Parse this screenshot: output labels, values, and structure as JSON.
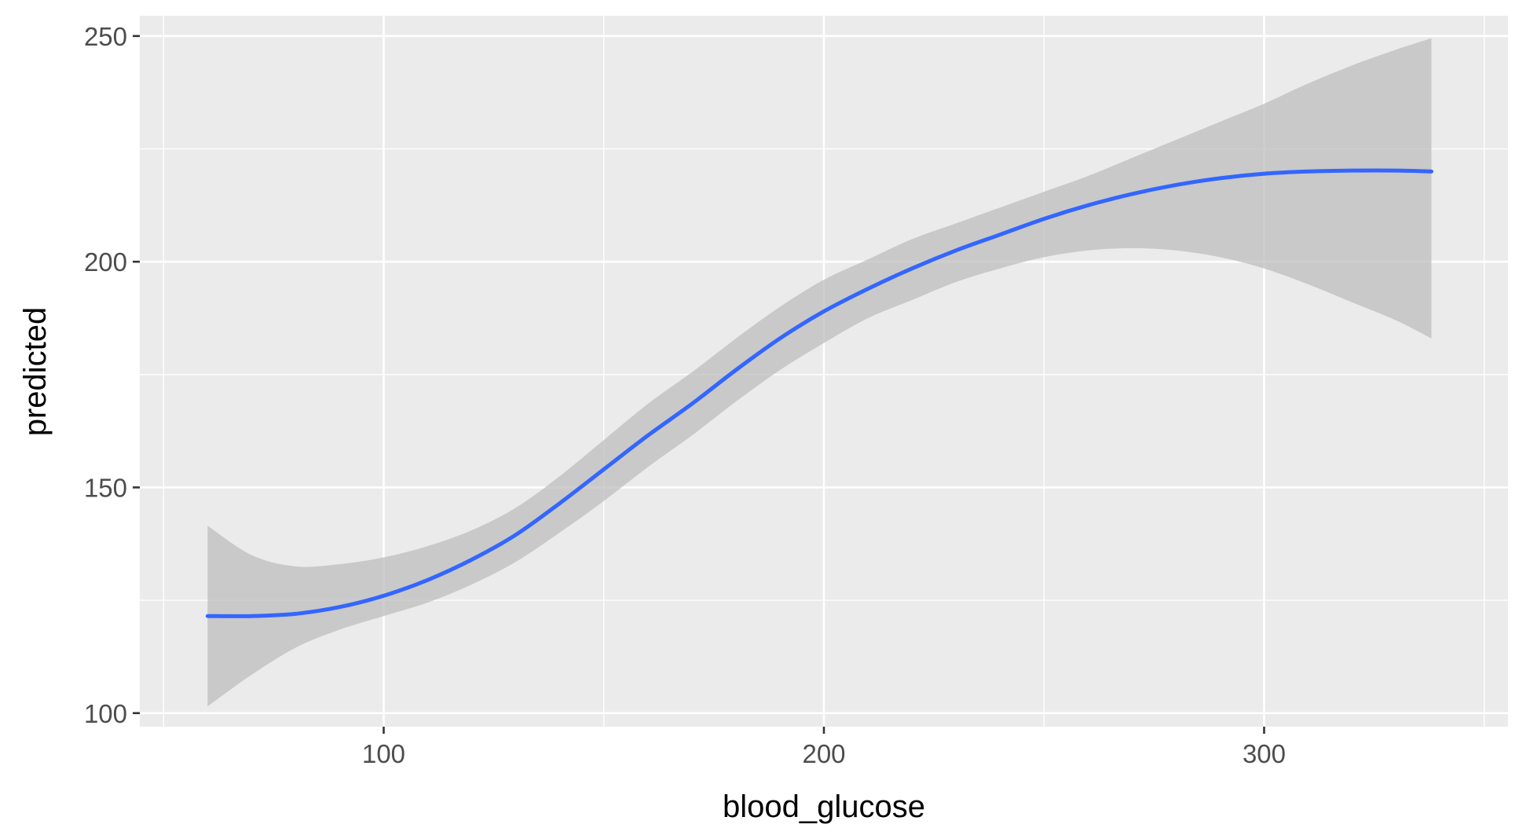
{
  "chart_data": {
    "type": "line",
    "title": "",
    "xlabel": "blood_glucose",
    "ylabel": "predicted",
    "xlim": [
      44.6,
      355.4
    ],
    "ylim": [
      97,
      254.5
    ],
    "x_ticks": [
      100,
      200,
      300
    ],
    "y_ticks": [
      100,
      150,
      200,
      250
    ],
    "grid": true,
    "legend": "none",
    "colors": {
      "panel_background": "#ebebeb",
      "grid": "#ffffff",
      "line": "#3366ff",
      "ribbon": "#bdbdbd",
      "tick_text": "#4d4d4d",
      "axis_title": "#000000"
    },
    "series": [
      {
        "x": [
          60,
          70,
          80,
          90,
          100,
          110,
          120,
          130,
          140,
          150,
          160,
          170,
          180,
          190,
          200,
          210,
          220,
          230,
          240,
          250,
          260,
          270,
          280,
          290,
          300,
          310,
          320,
          330,
          338
        ],
        "y": [
          121.5,
          121.5,
          122,
          123.5,
          126,
          129.5,
          134,
          139.5,
          146.5,
          154,
          161.5,
          168.5,
          176,
          183,
          189,
          194,
          198.5,
          202.5,
          206,
          209.5,
          212.5,
          215,
          217,
          218.5,
          219.5,
          220,
          220.2,
          220.2,
          220
        ],
        "lower": [
          101.5,
          108.5,
          114.5,
          118.5,
          121.5,
          124.5,
          128.5,
          133.5,
          140,
          147,
          154.5,
          161.5,
          169,
          176,
          182,
          187.5,
          191.5,
          195.5,
          198.5,
          201,
          202.5,
          203,
          202.5,
          201,
          198.5,
          195,
          191,
          187,
          183
        ],
        "upper": [
          141.5,
          135,
          132.5,
          133,
          134.5,
          137,
          140.5,
          145.5,
          152.5,
          160.5,
          168.5,
          175.5,
          183,
          190,
          196,
          200.5,
          205,
          208.5,
          212,
          215.5,
          219,
          223,
          227,
          231,
          235,
          239.5,
          243.5,
          247,
          249.5
        ]
      }
    ]
  }
}
